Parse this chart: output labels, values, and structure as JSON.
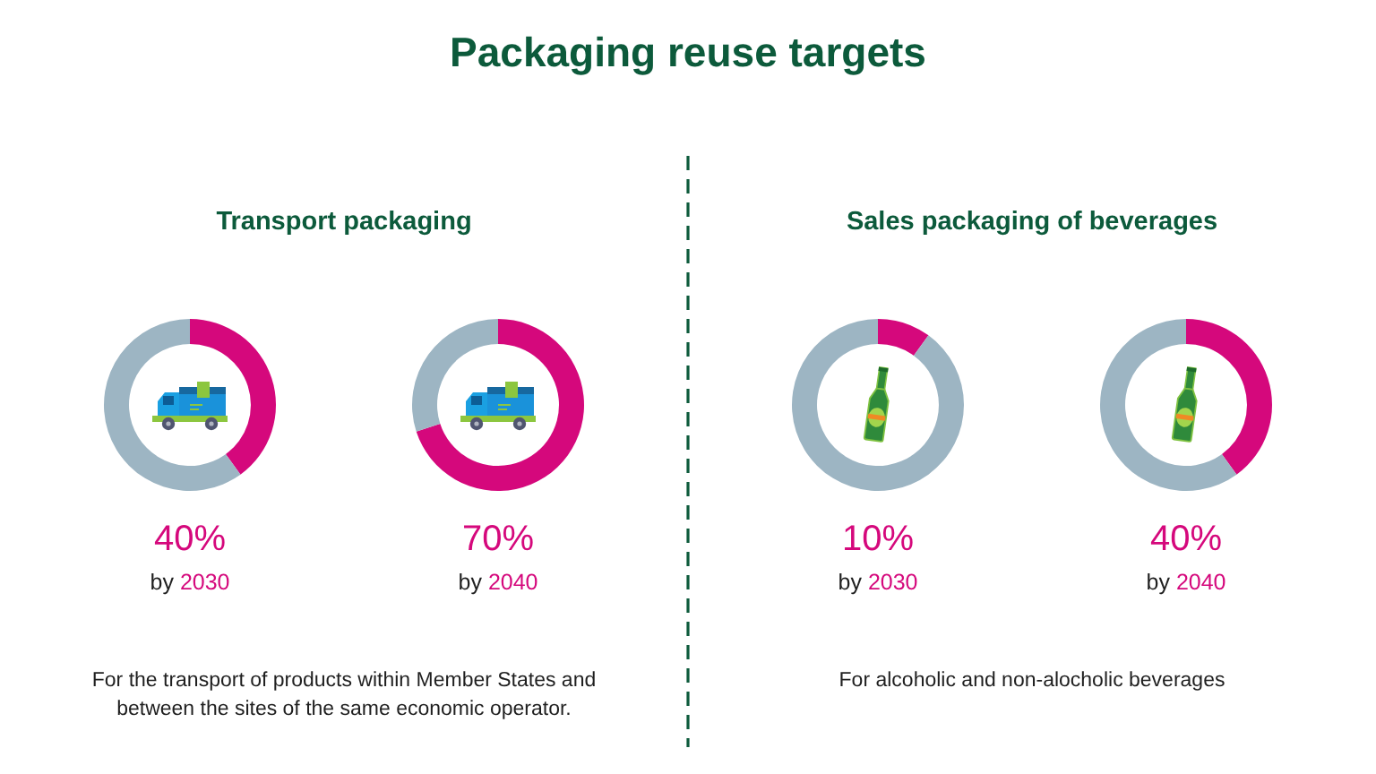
{
  "chart_data": [
    {
      "type": "other",
      "title": "Packaging reuse targets"
    },
    {
      "type": "other",
      "title": "Transport packaging",
      "annotations": [
        "For the transport of products within Member States and between the sites of the same economic operator."
      ]
    },
    {
      "type": "donut",
      "title": "40%",
      "subtitle": "by 2030",
      "categories": [
        null,
        null
      ],
      "values": [
        40,
        60
      ],
      "colors": [
        "#d5087c",
        "#9db5c3"
      ]
    },
    {
      "type": "donut",
      "title": "70%",
      "subtitle": "by 2040",
      "categories": [
        null,
        null
      ],
      "values": [
        70,
        30
      ],
      "colors": [
        "#d5087c",
        "#9db5c3"
      ]
    },
    {
      "type": "other",
      "title": "Sales packaging of beverages",
      "annotations": [
        "For alcoholic and non-alocholic beverages"
      ]
    },
    {
      "type": "donut",
      "title": "10%",
      "subtitle": "by 2030",
      "categories": [
        null,
        null
      ],
      "values": [
        10,
        90
      ],
      "colors": [
        "#d5087c",
        "#9db5c3"
      ]
    },
    {
      "type": "donut",
      "title": "40%",
      "subtitle": "by 2040",
      "categories": [
        null,
        null
      ],
      "values": [
        40,
        60
      ],
      "colors": [
        "#d5087c",
        "#9db5c3"
      ]
    }
  ]
}
